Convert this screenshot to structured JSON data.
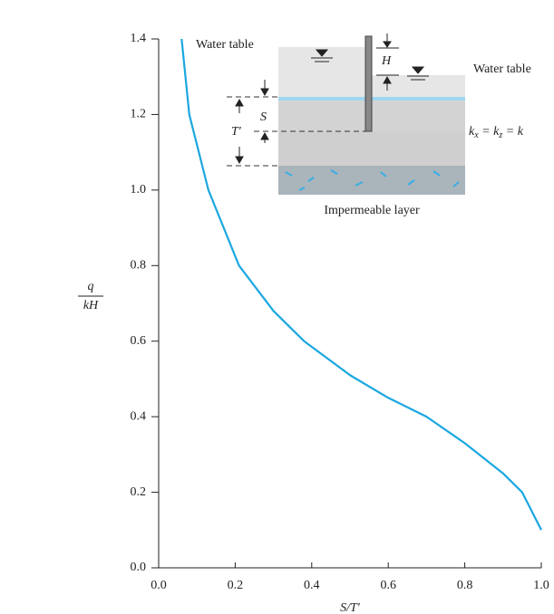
{
  "chart_data": {
    "type": "line",
    "x_label": "S/T′",
    "y_label": {
      "numerator": "q",
      "denominator": "kH"
    },
    "x": [
      0.06,
      0.08,
      0.13,
      0.21,
      0.3,
      0.38,
      0.5,
      0.6,
      0.7,
      0.8,
      0.9,
      0.95,
      1.0
    ],
    "series": [
      {
        "color": "#1ba7e0",
        "values": [
          1.4,
          1.2,
          1.0,
          0.8,
          0.68,
          0.6,
          0.51,
          0.45,
          0.4,
          0.33,
          0.25,
          0.2,
          0.1
        ]
      }
    ],
    "xlim": [
      0,
      1.0
    ],
    "ylim": [
      0,
      1.4
    ],
    "xticks": [
      {
        "value": 0,
        "label": "0.0"
      },
      0.2,
      0.4,
      0.6,
      0.8,
      {
        "value": 1,
        "label": "1.0"
      }
    ],
    "yticks": [
      {
        "value": 0,
        "label": "0.0"
      },
      0.2,
      0.4,
      0.6,
      0.8,
      {
        "value": 1,
        "label": "1.0"
      },
      1.2,
      1.4
    ],
    "inset": {
      "water_table_left": "Water table",
      "water_table_right": "Water table",
      "H": "H",
      "S": "S",
      "T": "T′",
      "k_equation": [
        "k",
        "x",
        " = k",
        "z",
        " = k"
      ],
      "impermeable": "Impermeable layer"
    }
  }
}
